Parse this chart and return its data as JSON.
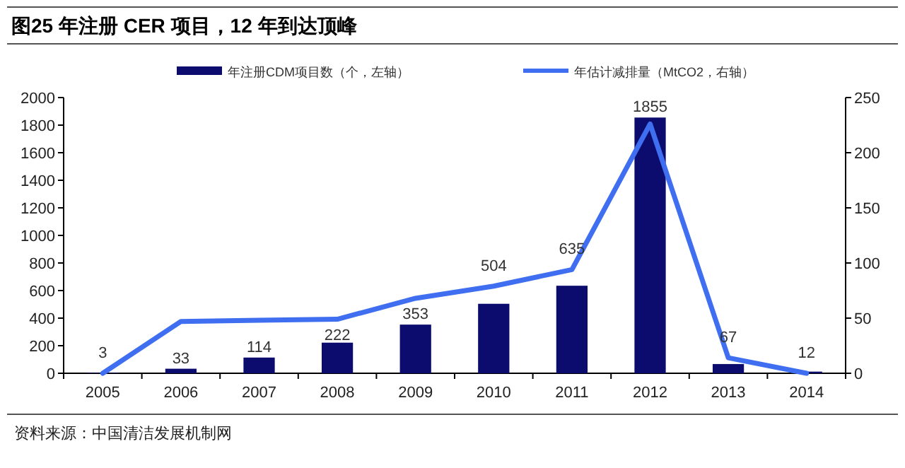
{
  "chart_data": {
    "type": "bar",
    "title": "图25 年注册 CER 项目，12 年到达顶峰",
    "categories": [
      "2005",
      "2006",
      "2007",
      "2008",
      "2009",
      "2010",
      "2011",
      "2012",
      "2013",
      "2014"
    ],
    "series": [
      {
        "name": "年注册CDM项目数（个，左轴）",
        "color": "#0c0c6e",
        "values": [
          3,
          33,
          114,
          222,
          353,
          504,
          635,
          1855,
          67,
          12
        ],
        "value_labels": [
          "3",
          "33",
          "114",
          "222",
          "353",
          "504",
          "635",
          "1855",
          "67",
          "12"
        ]
      },
      {
        "name": "年估计减排量（MtCO2，右轴）",
        "type": "line",
        "axis": "y2",
        "color": "#3f6ff0",
        "values": [
          0,
          47,
          48,
          49,
          68,
          79,
          94,
          226,
          14,
          0
        ]
      }
    ],
    "ylim": [
      0,
      2000
    ],
    "yticks": [
      0,
      200,
      400,
      600,
      800,
      1000,
      1200,
      1400,
      1600,
      1800,
      2000
    ],
    "y2lim": [
      0,
      250
    ],
    "y2ticks": [
      0,
      50,
      100,
      150,
      200,
      250
    ],
    "legend": "top",
    "grid": false,
    "annotations": [
      "资料来源：中国清洁发展机制网"
    ]
  }
}
